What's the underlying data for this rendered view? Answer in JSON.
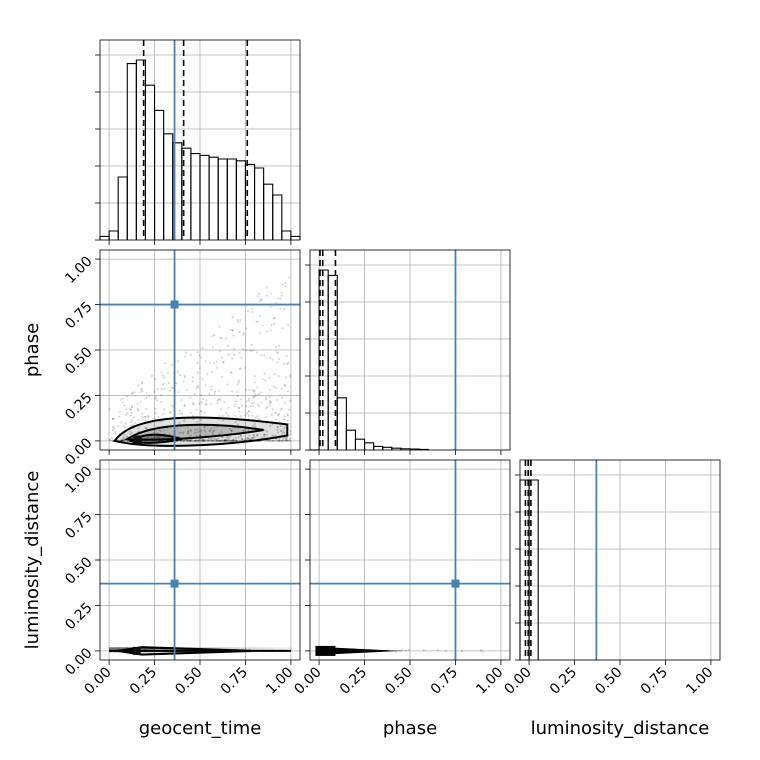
{
  "chart_data": {
    "type": "corner",
    "parameters": [
      "geocent_time",
      "phase",
      "luminosity_distance"
    ],
    "tick_labels": [
      "0.00",
      "0.25",
      "0.50",
      "0.75",
      "1.00"
    ],
    "tick_values": [
      0,
      0.25,
      0.5,
      0.75,
      1.0
    ],
    "axis_range": [
      -0.05,
      1.05
    ],
    "grid": true,
    "truth_color": "#4682b4",
    "truths": {
      "geocent_time": 0.36,
      "phase": 0.75,
      "luminosity_distance": 0.37
    },
    "histograms": {
      "geocent_time": {
        "bin_edges": [
          -0.05,
          0.0,
          0.05,
          0.1,
          0.15,
          0.2,
          0.25,
          0.3,
          0.35,
          0.4,
          0.45,
          0.5,
          0.55,
          0.6,
          0.65,
          0.7,
          0.75,
          0.8,
          0.85,
          0.9,
          0.95,
          1.0,
          1.05
        ],
        "counts": [
          0.02,
          0.05,
          0.35,
          0.98,
          1.0,
          0.86,
          0.72,
          0.59,
          0.54,
          0.51,
          0.48,
          0.47,
          0.46,
          0.45,
          0.45,
          0.44,
          0.42,
          0.4,
          0.31,
          0.25,
          0.05,
          0.02
        ],
        "quantiles": [
          0.19,
          0.41,
          0.76
        ]
      },
      "phase": {
        "bin_edges": [
          -0.05,
          0.0,
          0.05,
          0.1,
          0.15,
          0.2,
          0.25,
          0.3,
          0.35,
          0.4,
          0.45,
          0.5,
          0.55,
          0.6
        ],
        "counts": [
          0,
          1.0,
          0.97,
          0.29,
          0.11,
          0.06,
          0.04,
          0.02,
          0.015,
          0.01,
          0.007,
          0.005,
          0.003
        ],
        "quantiles": [
          0.005,
          0.02,
          0.09
        ]
      },
      "luminosity_distance": {
        "bin_edges": [
          -0.05,
          0.0,
          0.05
        ],
        "counts": [
          1.0,
          1.0
        ],
        "quantiles": [
          -0.02,
          -0.005,
          0.01
        ]
      }
    }
  }
}
